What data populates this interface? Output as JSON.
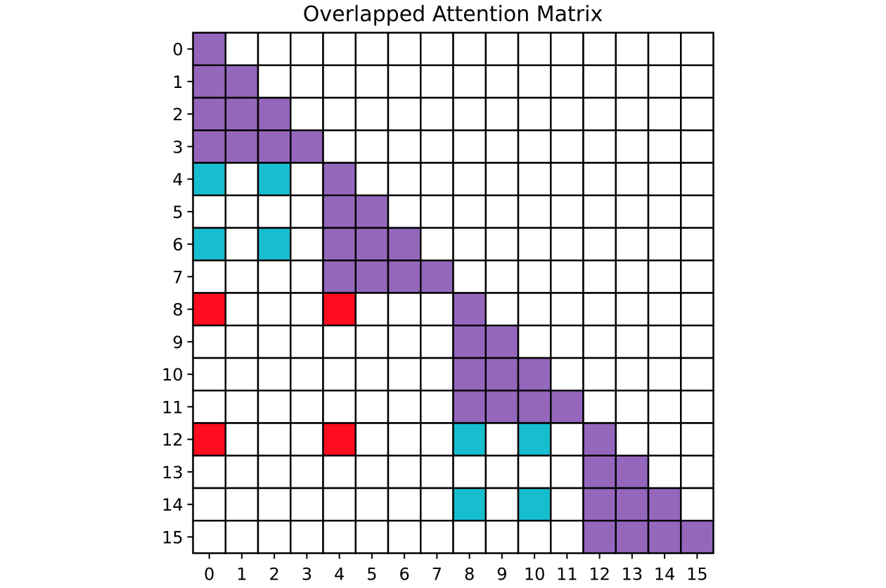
{
  "chart_data": {
    "type": "heatmap",
    "title": "Overlapped Attention Matrix",
    "xlabel": "",
    "ylabel": "",
    "rows": 16,
    "cols": 16,
    "x_ticks": [
      "0",
      "1",
      "2",
      "3",
      "4",
      "5",
      "6",
      "7",
      "8",
      "9",
      "10",
      "11",
      "12",
      "13",
      "14",
      "15"
    ],
    "y_ticks": [
      "0",
      "1",
      "2",
      "3",
      "4",
      "5",
      "6",
      "7",
      "8",
      "9",
      "10",
      "11",
      "12",
      "13",
      "14",
      "15"
    ],
    "colors": {
      "0": "#ffffff",
      "1": "#9467bd",
      "2": "#17becf",
      "3": "#ff0d1f",
      "grid": "#000000"
    },
    "matrix": [
      [
        1,
        0,
        0,
        0,
        0,
        0,
        0,
        0,
        0,
        0,
        0,
        0,
        0,
        0,
        0,
        0
      ],
      [
        1,
        1,
        0,
        0,
        0,
        0,
        0,
        0,
        0,
        0,
        0,
        0,
        0,
        0,
        0,
        0
      ],
      [
        1,
        1,
        1,
        0,
        0,
        0,
        0,
        0,
        0,
        0,
        0,
        0,
        0,
        0,
        0,
        0
      ],
      [
        1,
        1,
        1,
        1,
        0,
        0,
        0,
        0,
        0,
        0,
        0,
        0,
        0,
        0,
        0,
        0
      ],
      [
        2,
        0,
        2,
        0,
        1,
        0,
        0,
        0,
        0,
        0,
        0,
        0,
        0,
        0,
        0,
        0
      ],
      [
        0,
        0,
        0,
        0,
        1,
        1,
        0,
        0,
        0,
        0,
        0,
        0,
        0,
        0,
        0,
        0
      ],
      [
        2,
        0,
        2,
        0,
        1,
        1,
        1,
        0,
        0,
        0,
        0,
        0,
        0,
        0,
        0,
        0
      ],
      [
        0,
        0,
        0,
        0,
        1,
        1,
        1,
        1,
        0,
        0,
        0,
        0,
        0,
        0,
        0,
        0
      ],
      [
        3,
        0,
        0,
        0,
        3,
        0,
        0,
        0,
        1,
        0,
        0,
        0,
        0,
        0,
        0,
        0
      ],
      [
        0,
        0,
        0,
        0,
        0,
        0,
        0,
        0,
        1,
        1,
        0,
        0,
        0,
        0,
        0,
        0
      ],
      [
        0,
        0,
        0,
        0,
        0,
        0,
        0,
        0,
        1,
        1,
        1,
        0,
        0,
        0,
        0,
        0
      ],
      [
        0,
        0,
        0,
        0,
        0,
        0,
        0,
        0,
        1,
        1,
        1,
        1,
        0,
        0,
        0,
        0
      ],
      [
        3,
        0,
        0,
        0,
        3,
        0,
        0,
        0,
        2,
        0,
        2,
        0,
        1,
        0,
        0,
        0
      ],
      [
        0,
        0,
        0,
        0,
        0,
        0,
        0,
        0,
        0,
        0,
        0,
        0,
        1,
        1,
        0,
        0
      ],
      [
        0,
        0,
        0,
        0,
        0,
        0,
        0,
        0,
        2,
        0,
        2,
        0,
        1,
        1,
        1,
        0
      ],
      [
        0,
        0,
        0,
        0,
        0,
        0,
        0,
        0,
        0,
        0,
        0,
        0,
        1,
        1,
        1,
        1
      ]
    ]
  }
}
